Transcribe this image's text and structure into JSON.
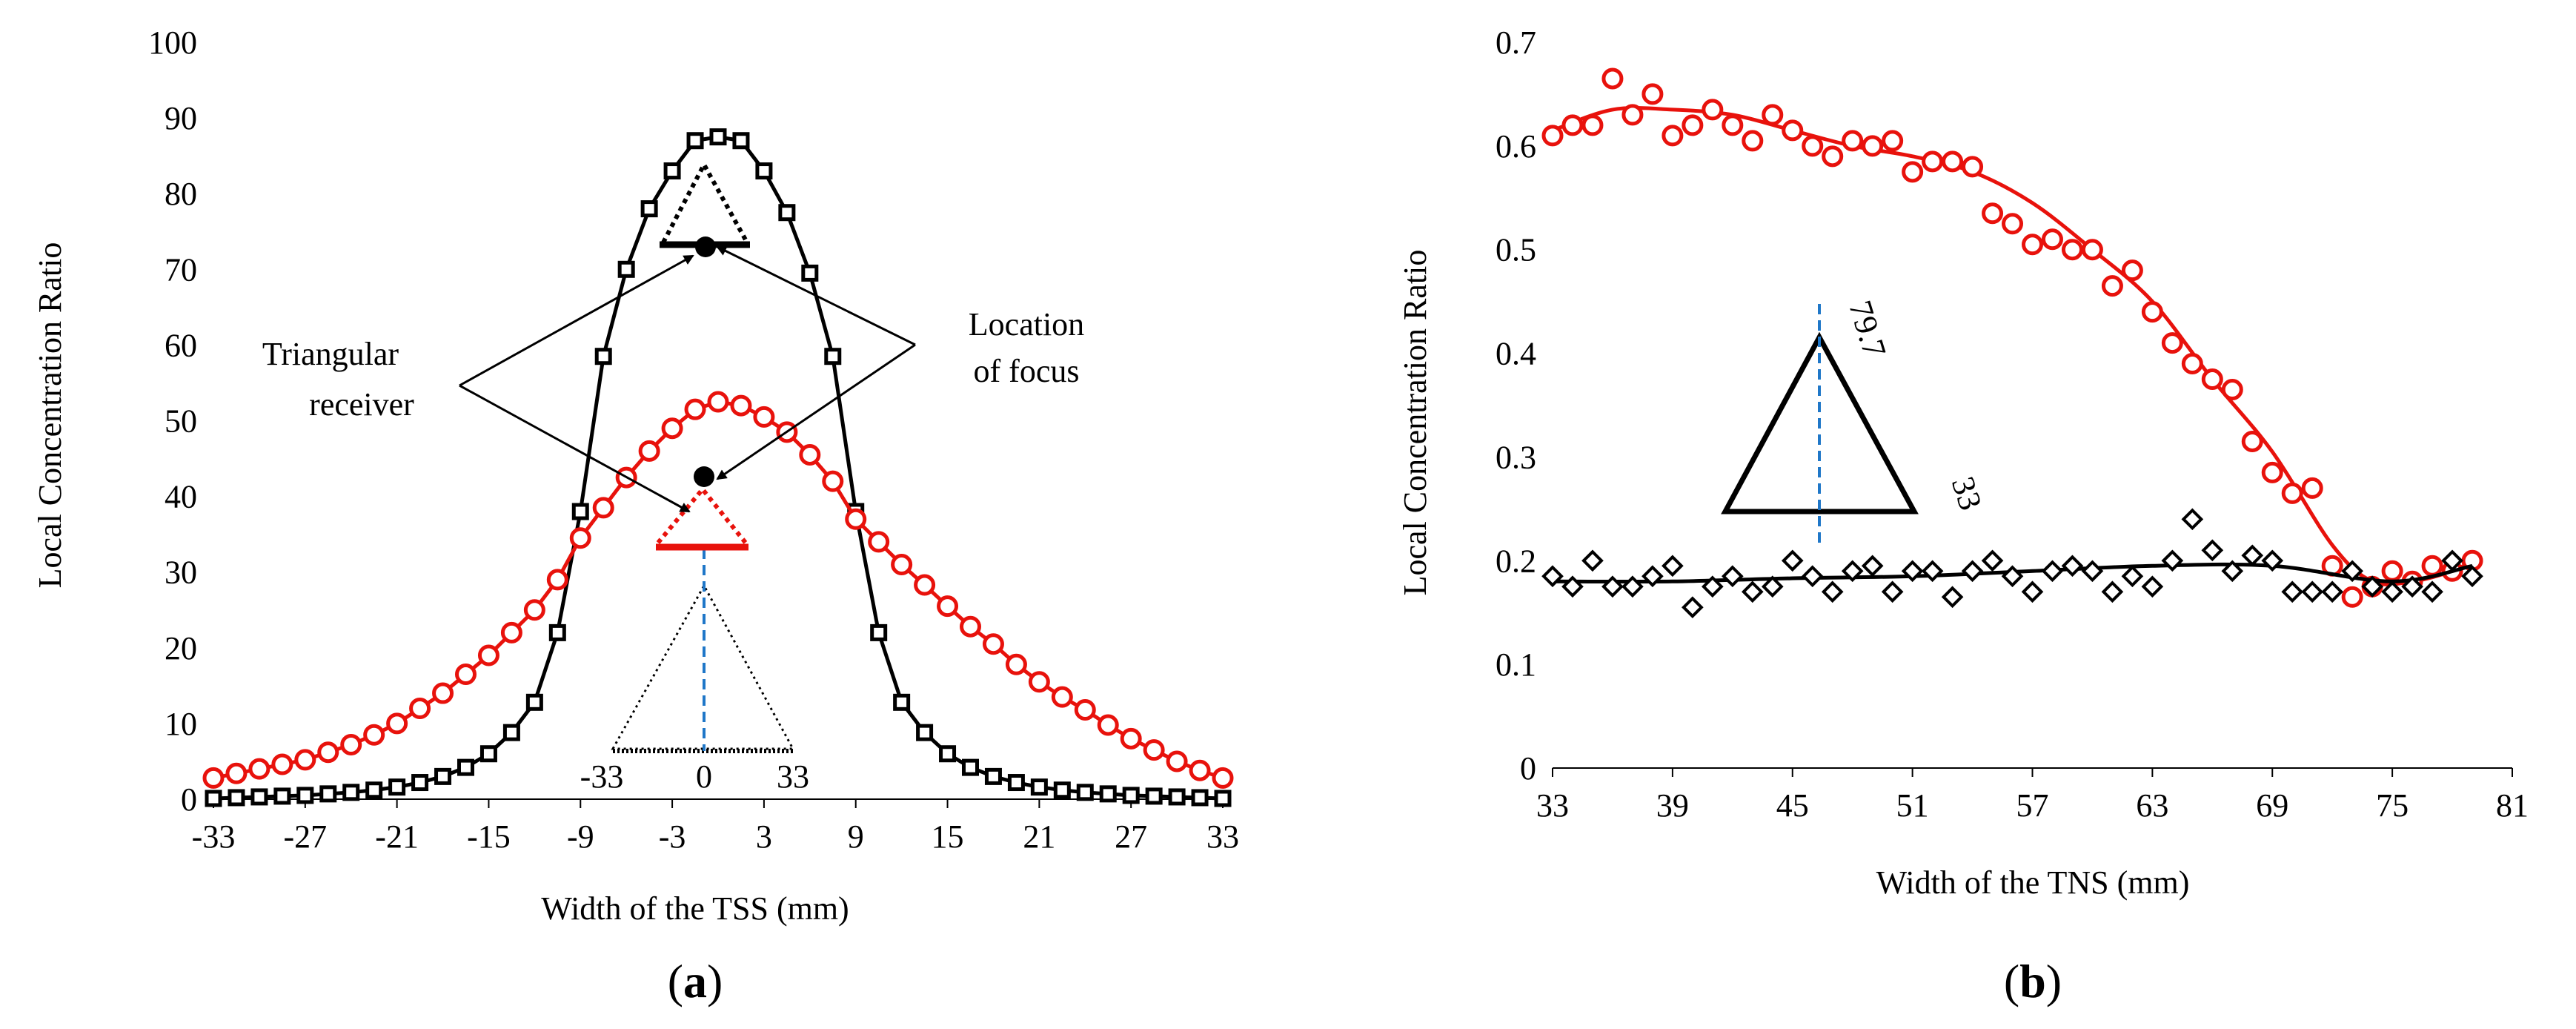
{
  "chart_data": [
    {
      "type": "line",
      "panel_label": "a",
      "xlabel": "Width of the TSS (mm)",
      "ylabel": "Local Concentration Ratio",
      "xlim": [
        -33,
        33
      ],
      "ylim": [
        0,
        100
      ],
      "x_ticks": [
        "-33",
        "-27",
        "-21",
        "-15",
        "-9",
        "-3",
        "3",
        "9",
        "15",
        "21",
        "27",
        "33"
      ],
      "y_ticks": [
        "0",
        "10",
        "20",
        "30",
        "40",
        "50",
        "60",
        "70",
        "80",
        "90",
        "100"
      ],
      "series": [
        {
          "color": "#000000",
          "marker": "square",
          "x": [
            -33,
            -31.5,
            -30,
            -28.5,
            -27,
            -25.5,
            -24,
            -22.5,
            -21,
            -19.5,
            -18,
            -16.5,
            -15,
            -13.5,
            -12,
            -10.5,
            -9,
            -7.5,
            -6,
            -4.5,
            -3,
            -1.5,
            0,
            1.5,
            3,
            4.5,
            6,
            7.5,
            9,
            10.5,
            12,
            13.5,
            15,
            16.5,
            18,
            19.5,
            21,
            22.5,
            24,
            25.5,
            27,
            28.5,
            30,
            31.5,
            33
          ],
          "values": [
            0.1,
            0.2,
            0.3,
            0.4,
            0.5,
            0.7,
            0.9,
            1.2,
            1.6,
            2.2,
            3.0,
            4.2,
            6.0,
            8.8,
            12.8,
            22,
            38,
            58.5,
            70,
            78,
            83,
            87,
            87.5,
            87,
            83,
            77.5,
            69.5,
            58.5,
            38,
            22,
            12.8,
            8.8,
            6.0,
            4.2,
            3.0,
            2.2,
            1.6,
            1.2,
            0.9,
            0.7,
            0.5,
            0.4,
            0.3,
            0.2,
            0.1
          ]
        },
        {
          "color": "#e8120c",
          "marker": "circle",
          "x": [
            -33,
            -31.5,
            -30,
            -28.5,
            -27,
            -25.5,
            -24,
            -22.5,
            -21,
            -19.5,
            -18,
            -16.5,
            -15,
            -13.5,
            -12,
            -10.5,
            -9,
            -7.5,
            -6,
            -4.5,
            -3,
            -1.5,
            0,
            1.5,
            3,
            4.5,
            6,
            7.5,
            9,
            10.5,
            12,
            13.5,
            15,
            16.5,
            18,
            19.5,
            21,
            22.5,
            24,
            25.5,
            27,
            28.5,
            30,
            31.5,
            33
          ],
          "values": [
            2.8,
            3.4,
            4.0,
            4.6,
            5.2,
            6.2,
            7.2,
            8.5,
            10,
            12,
            14,
            16.5,
            19,
            22,
            25,
            29,
            34.5,
            38.5,
            42.5,
            46,
            49,
            51.5,
            52.5,
            52,
            50.5,
            48.5,
            45.5,
            42,
            37,
            34,
            31,
            28.3,
            25.5,
            22.8,
            20.5,
            17.8,
            15.5,
            13.5,
            11.8,
            9.8,
            8.0,
            6.5,
            5.0,
            3.8,
            2.8
          ]
        }
      ],
      "annotations": {
        "triangular_receiver": [
          "Triangular",
          "receiver"
        ],
        "location_of_focus": [
          "Location",
          "of focus"
        ],
        "inset_labels": [
          "-33",
          "0",
          "33"
        ]
      }
    },
    {
      "type": "scatter",
      "panel_label": "b",
      "xlabel": "Width of the TNS (mm)",
      "ylabel": "Local Concentration Ratio",
      "xlim": [
        33,
        81
      ],
      "ylim": [
        0,
        0.7
      ],
      "x_ticks": [
        "33",
        "39",
        "45",
        "51",
        "57",
        "63",
        "69",
        "75",
        "81"
      ],
      "y_ticks": [
        "0",
        "0.1",
        "0.2",
        "0.3",
        "0.4",
        "0.5",
        "0.6",
        "0.7"
      ],
      "series": [
        {
          "color": "#e8120c",
          "marker": "circle",
          "x": [
            33,
            34,
            35,
            36,
            37,
            38,
            39,
            40,
            41,
            42,
            43,
            44,
            45,
            46,
            47,
            48,
            49,
            50,
            51,
            52,
            53,
            54,
            55,
            56,
            57,
            58,
            59,
            60,
            61,
            62,
            63,
            64,
            65,
            66,
            67,
            68,
            69,
            70,
            71,
            72,
            73,
            74,
            75,
            76,
            77,
            78,
            79
          ],
          "values": [
            0.61,
            0.62,
            0.62,
            0.665,
            0.63,
            0.65,
            0.61,
            0.62,
            0.635,
            0.62,
            0.605,
            0.63,
            0.615,
            0.6,
            0.59,
            0.605,
            0.6,
            0.605,
            0.575,
            0.585,
            0.585,
            0.58,
            0.535,
            0.525,
            0.505,
            0.51,
            0.5,
            0.5,
            0.465,
            0.48,
            0.44,
            0.41,
            0.39,
            0.375,
            0.365,
            0.315,
            0.285,
            0.265,
            0.27,
            0.195,
            0.165,
            0.175,
            0.19,
            0.18,
            0.195,
            0.19,
            0.2
          ],
          "fit": {
            "x": [
              33,
              36,
              39,
              42,
              45,
              48,
              51,
              54,
              57,
              60,
              63,
              66,
              69,
              72,
              74,
              76,
              78,
              79
            ],
            "values": [
              0.615,
              0.635,
              0.635,
              0.63,
              0.615,
              0.6,
              0.59,
              0.575,
              0.545,
              0.5,
              0.45,
              0.375,
              0.305,
              0.215,
              0.18,
              0.18,
              0.19,
              0.2
            ]
          }
        },
        {
          "color": "#000000",
          "marker": "diamond",
          "x": [
            33,
            34,
            35,
            36,
            37,
            38,
            39,
            40,
            41,
            42,
            43,
            44,
            45,
            46,
            47,
            48,
            49,
            50,
            51,
            52,
            53,
            54,
            55,
            56,
            57,
            58,
            59,
            60,
            61,
            62,
            63,
            64,
            65,
            66,
            67,
            68,
            69,
            70,
            71,
            72,
            73,
            74,
            75,
            76,
            77,
            78,
            79
          ],
          "values": [
            0.185,
            0.175,
            0.2,
            0.175,
            0.175,
            0.185,
            0.195,
            0.155,
            0.175,
            0.185,
            0.17,
            0.175,
            0.2,
            0.185,
            0.17,
            0.19,
            0.195,
            0.17,
            0.19,
            0.19,
            0.165,
            0.19,
            0.2,
            0.185,
            0.17,
            0.19,
            0.195,
            0.19,
            0.17,
            0.185,
            0.175,
            0.2,
            0.24,
            0.21,
            0.19,
            0.205,
            0.2,
            0.17,
            0.17,
            0.17,
            0.19,
            0.175,
            0.17,
            0.175,
            0.17,
            0.2,
            0.185
          ],
          "fit": {
            "x": [
              33,
              39,
              45,
              51,
              57,
              63,
              69,
              75,
              79
            ],
            "values": [
              0.18,
              0.18,
              0.183,
              0.185,
              0.19,
              0.195,
              0.195,
              0.18,
              0.195
            ]
          }
        }
      ],
      "annotations": {
        "height_label": "79.7",
        "base_label": "33"
      }
    }
  ]
}
